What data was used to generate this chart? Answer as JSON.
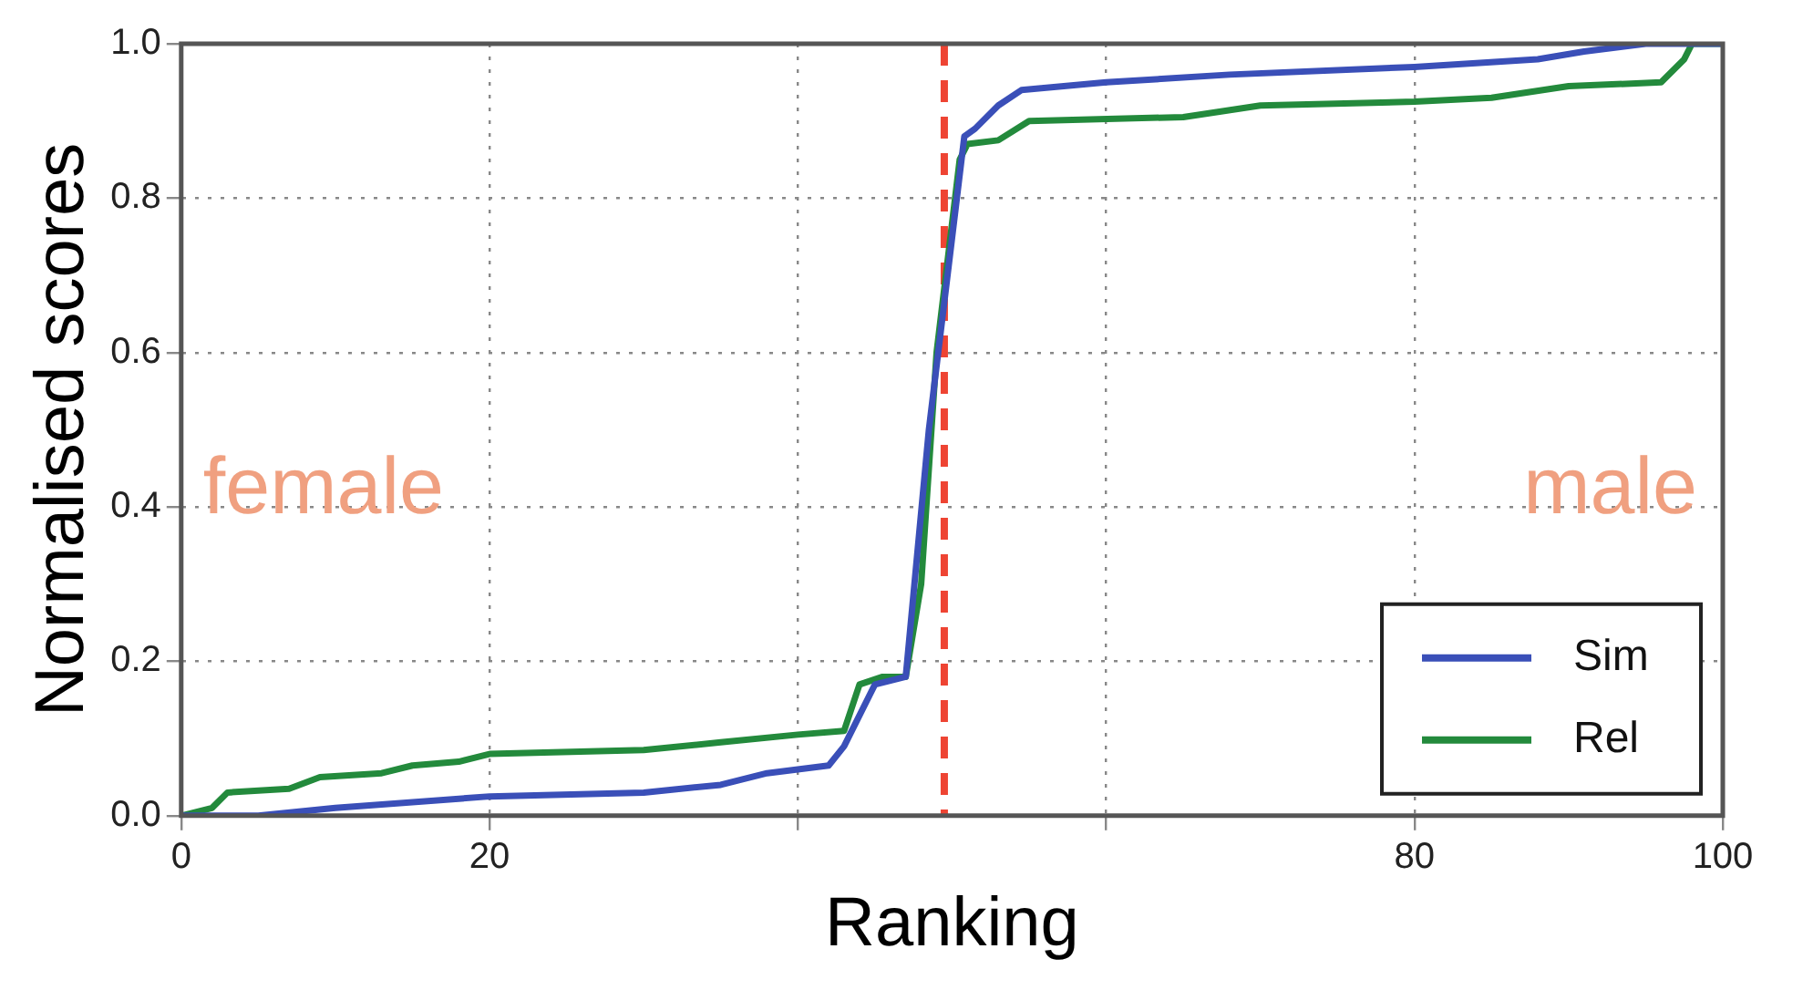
{
  "chart_data": {
    "type": "line",
    "xlabel": "Ranking",
    "ylabel": "Normalised scores",
    "xlim": [
      0,
      100
    ],
    "ylim": [
      0,
      1
    ],
    "xticks": [
      0,
      20,
      {
        "value": 40,
        "label": null
      },
      {
        "value": 60,
        "label": null
      },
      80,
      100
    ],
    "yticks": [
      {
        "value": 0,
        "label": "0.0"
      },
      {
        "value": 0.2,
        "label": "0.2"
      },
      {
        "value": 0.4,
        "label": "0.4"
      },
      {
        "value": 0.6,
        "label": "0.6"
      },
      {
        "value": 0.8,
        "label": "0.8"
      },
      {
        "value": 1,
        "label": "1.0"
      }
    ],
    "grid": true,
    "legend": "bottom right",
    "marker": "none",
    "line_style": "solid",
    "series": [
      {
        "name": "Sim",
        "color": "#3a4fb8",
        "x": [
          0,
          5,
          10,
          20,
          30,
          35,
          38,
          42,
          43,
          45,
          47,
          48.5,
          50.8,
          51.5,
          53,
          54.5,
          60,
          68,
          80,
          88,
          91,
          95,
          100
        ],
        "values": [
          0,
          0,
          0.01,
          0.025,
          0.03,
          0.04,
          0.055,
          0.065,
          0.09,
          0.17,
          0.18,
          0.5,
          0.88,
          0.89,
          0.92,
          0.94,
          0.95,
          0.96,
          0.97,
          0.98,
          0.99,
          1,
          1
        ]
      },
      {
        "name": "Rel",
        "color": "#238a3c",
        "x": [
          0,
          2,
          3,
          7,
          9,
          13,
          15,
          18,
          20,
          30,
          35,
          40,
          43,
          44,
          45.5,
          47,
          48,
          49,
          50.5,
          51,
          53,
          55,
          65,
          70,
          80,
          85,
          90,
          96,
          97.5,
          98,
          100
        ],
        "values": [
          0,
          0.01,
          0.03,
          0.035,
          0.05,
          0.055,
          0.065,
          0.07,
          0.08,
          0.085,
          0.095,
          0.105,
          0.11,
          0.17,
          0.18,
          0.18,
          0.3,
          0.6,
          0.85,
          0.87,
          0.875,
          0.9,
          0.905,
          0.92,
          0.925,
          0.93,
          0.945,
          0.95,
          0.98,
          1,
          1
        ]
      }
    ],
    "ref_lines": [
      {
        "axis": "x",
        "value": 49.5,
        "color": "#ee4433",
        "line_style": "dashed"
      }
    ],
    "annotations": [
      "female",
      "male"
    ]
  }
}
